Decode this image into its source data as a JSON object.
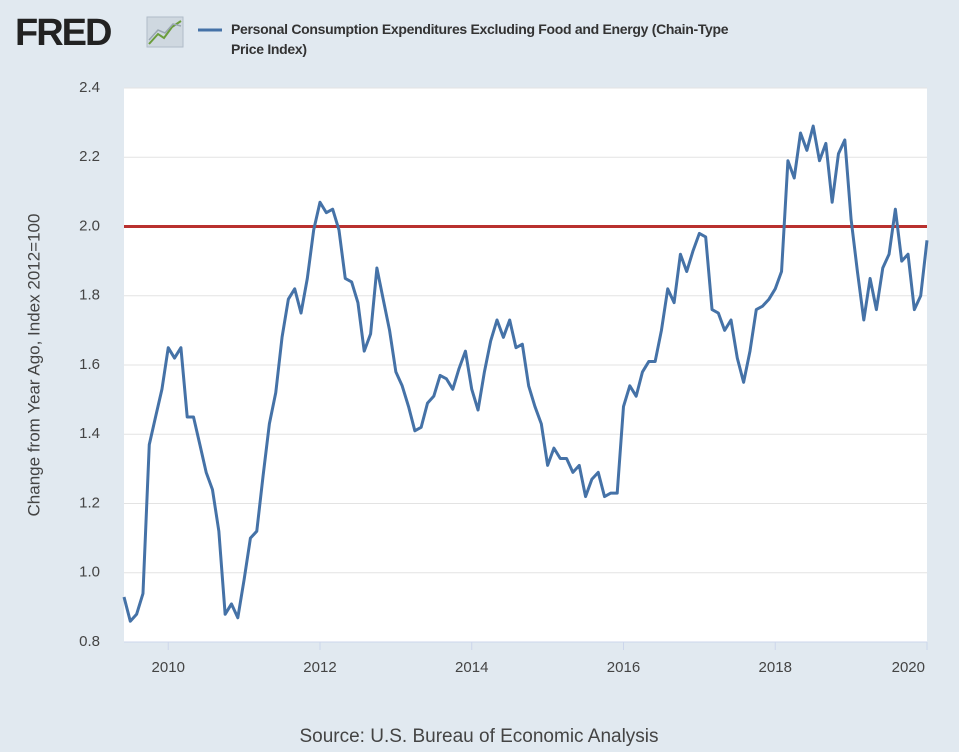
{
  "chart_data": {
    "type": "line",
    "logo": "FRED",
    "ylabel": "Change from Year Ago, Index 2012=100",
    "source": "Source: U.S. Bureau of Economic Analysis",
    "x": [
      2009.417,
      2009.5,
      2009.583,
      2009.667,
      2009.75,
      2009.833,
      2009.917,
      2010,
      2010.083,
      2010.167,
      2010.25,
      2010.333,
      2010.417,
      2010.5,
      2010.583,
      2010.667,
      2010.75,
      2010.833,
      2010.917,
      2011,
      2011.083,
      2011.167,
      2011.25,
      2011.333,
      2011.417,
      2011.5,
      2011.583,
      2011.667,
      2011.75,
      2011.833,
      2011.917,
      2012,
      2012.083,
      2012.167,
      2012.25,
      2012.333,
      2012.417,
      2012.5,
      2012.583,
      2012.667,
      2012.75,
      2012.833,
      2012.917,
      2013,
      2013.083,
      2013.167,
      2013.25,
      2013.333,
      2013.417,
      2013.5,
      2013.583,
      2013.667,
      2013.75,
      2013.833,
      2013.917,
      2014,
      2014.083,
      2014.167,
      2014.25,
      2014.333,
      2014.417,
      2014.5,
      2014.583,
      2014.667,
      2014.75,
      2014.833,
      2014.917,
      2015,
      2015.083,
      2015.167,
      2015.25,
      2015.333,
      2015.417,
      2015.5,
      2015.583,
      2015.667,
      2015.75,
      2015.833,
      2015.917,
      2016,
      2016.083,
      2016.167,
      2016.25,
      2016.333,
      2016.417,
      2016.5,
      2016.583,
      2016.667,
      2016.75,
      2016.833,
      2016.917,
      2017,
      2017.083,
      2017.167,
      2017.25,
      2017.333,
      2017.417,
      2017.5,
      2017.583,
      2017.667,
      2017.75,
      2017.833,
      2017.917,
      2018,
      2018.083,
      2018.167,
      2018.25,
      2018.333,
      2018.417,
      2018.5,
      2018.583,
      2018.667,
      2018.75,
      2018.833,
      2018.917,
      2019,
      2019.083,
      2019.167,
      2019.25,
      2019.333,
      2019.417,
      2019.5,
      2019.583,
      2019.667,
      2019.75,
      2019.833,
      2019.917,
      2020
    ],
    "series": [
      {
        "name": "Personal Consumption Expenditures Excluding Food and Energy (Chain-Type Price Index)",
        "color": "#4572a7",
        "values": [
          0.93,
          0.86,
          0.88,
          0.94,
          1.37,
          1.45,
          1.53,
          1.65,
          1.62,
          1.65,
          1.45,
          1.45,
          1.37,
          1.29,
          1.24,
          1.12,
          0.88,
          0.91,
          0.87,
          0.98,
          1.1,
          1.12,
          1.28,
          1.43,
          1.52,
          1.68,
          1.79,
          1.82,
          1.75,
          1.85,
          1.99,
          2.07,
          2.04,
          2.05,
          1.99,
          1.85,
          1.84,
          1.78,
          1.64,
          1.69,
          1.88,
          1.79,
          1.7,
          1.58,
          1.54,
          1.48,
          1.41,
          1.42,
          1.49,
          1.51,
          1.57,
          1.56,
          1.53,
          1.59,
          1.64,
          1.53,
          1.47,
          1.58,
          1.67,
          1.73,
          1.68,
          1.73,
          1.65,
          1.66,
          1.54,
          1.48,
          1.43,
          1.31,
          1.36,
          1.33,
          1.33,
          1.29,
          1.31,
          1.22,
          1.27,
          1.29,
          1.22,
          1.23,
          1.23,
          1.48,
          1.54,
          1.51,
          1.58,
          1.61,
          1.61,
          1.7,
          1.82,
          1.78,
          1.92,
          1.87,
          1.93,
          1.98,
          1.97,
          1.76,
          1.75,
          1.7,
          1.73,
          1.62,
          1.55,
          1.64,
          1.76,
          1.77,
          1.79,
          1.82,
          1.87,
          2.19,
          2.14,
          2.27,
          2.22,
          2.29,
          2.19,
          2.24,
          2.07,
          2.21,
          2.25,
          2.02,
          1.87,
          1.73,
          1.85,
          1.76,
          1.88,
          1.92,
          2.05,
          1.9,
          1.92,
          1.76,
          1.8,
          1.96
        ]
      }
    ],
    "reference_line": {
      "value": 2,
      "color": "#b9312f"
    },
    "xlim": [
      2009.417,
      2020
    ],
    "xticks": [
      2010,
      2012,
      2014,
      2016,
      2018,
      2020
    ],
    "ylim": [
      0.8,
      2.4
    ],
    "yticks": [
      {
        "value": 0.8,
        "label": "0.8"
      },
      {
        "value": 1,
        "label": "1.0"
      },
      {
        "value": 1.2,
        "label": "1.2"
      },
      {
        "value": 1.4,
        "label": "1.4"
      },
      {
        "value": 1.6,
        "label": "1.6"
      },
      {
        "value": 1.8,
        "label": "1.8"
      },
      {
        "value": 2,
        "label": "2.0"
      },
      {
        "value": 2.2,
        "label": "2.2"
      },
      {
        "value": 2.4,
        "label": "2.4"
      }
    ],
    "grid": true
  }
}
